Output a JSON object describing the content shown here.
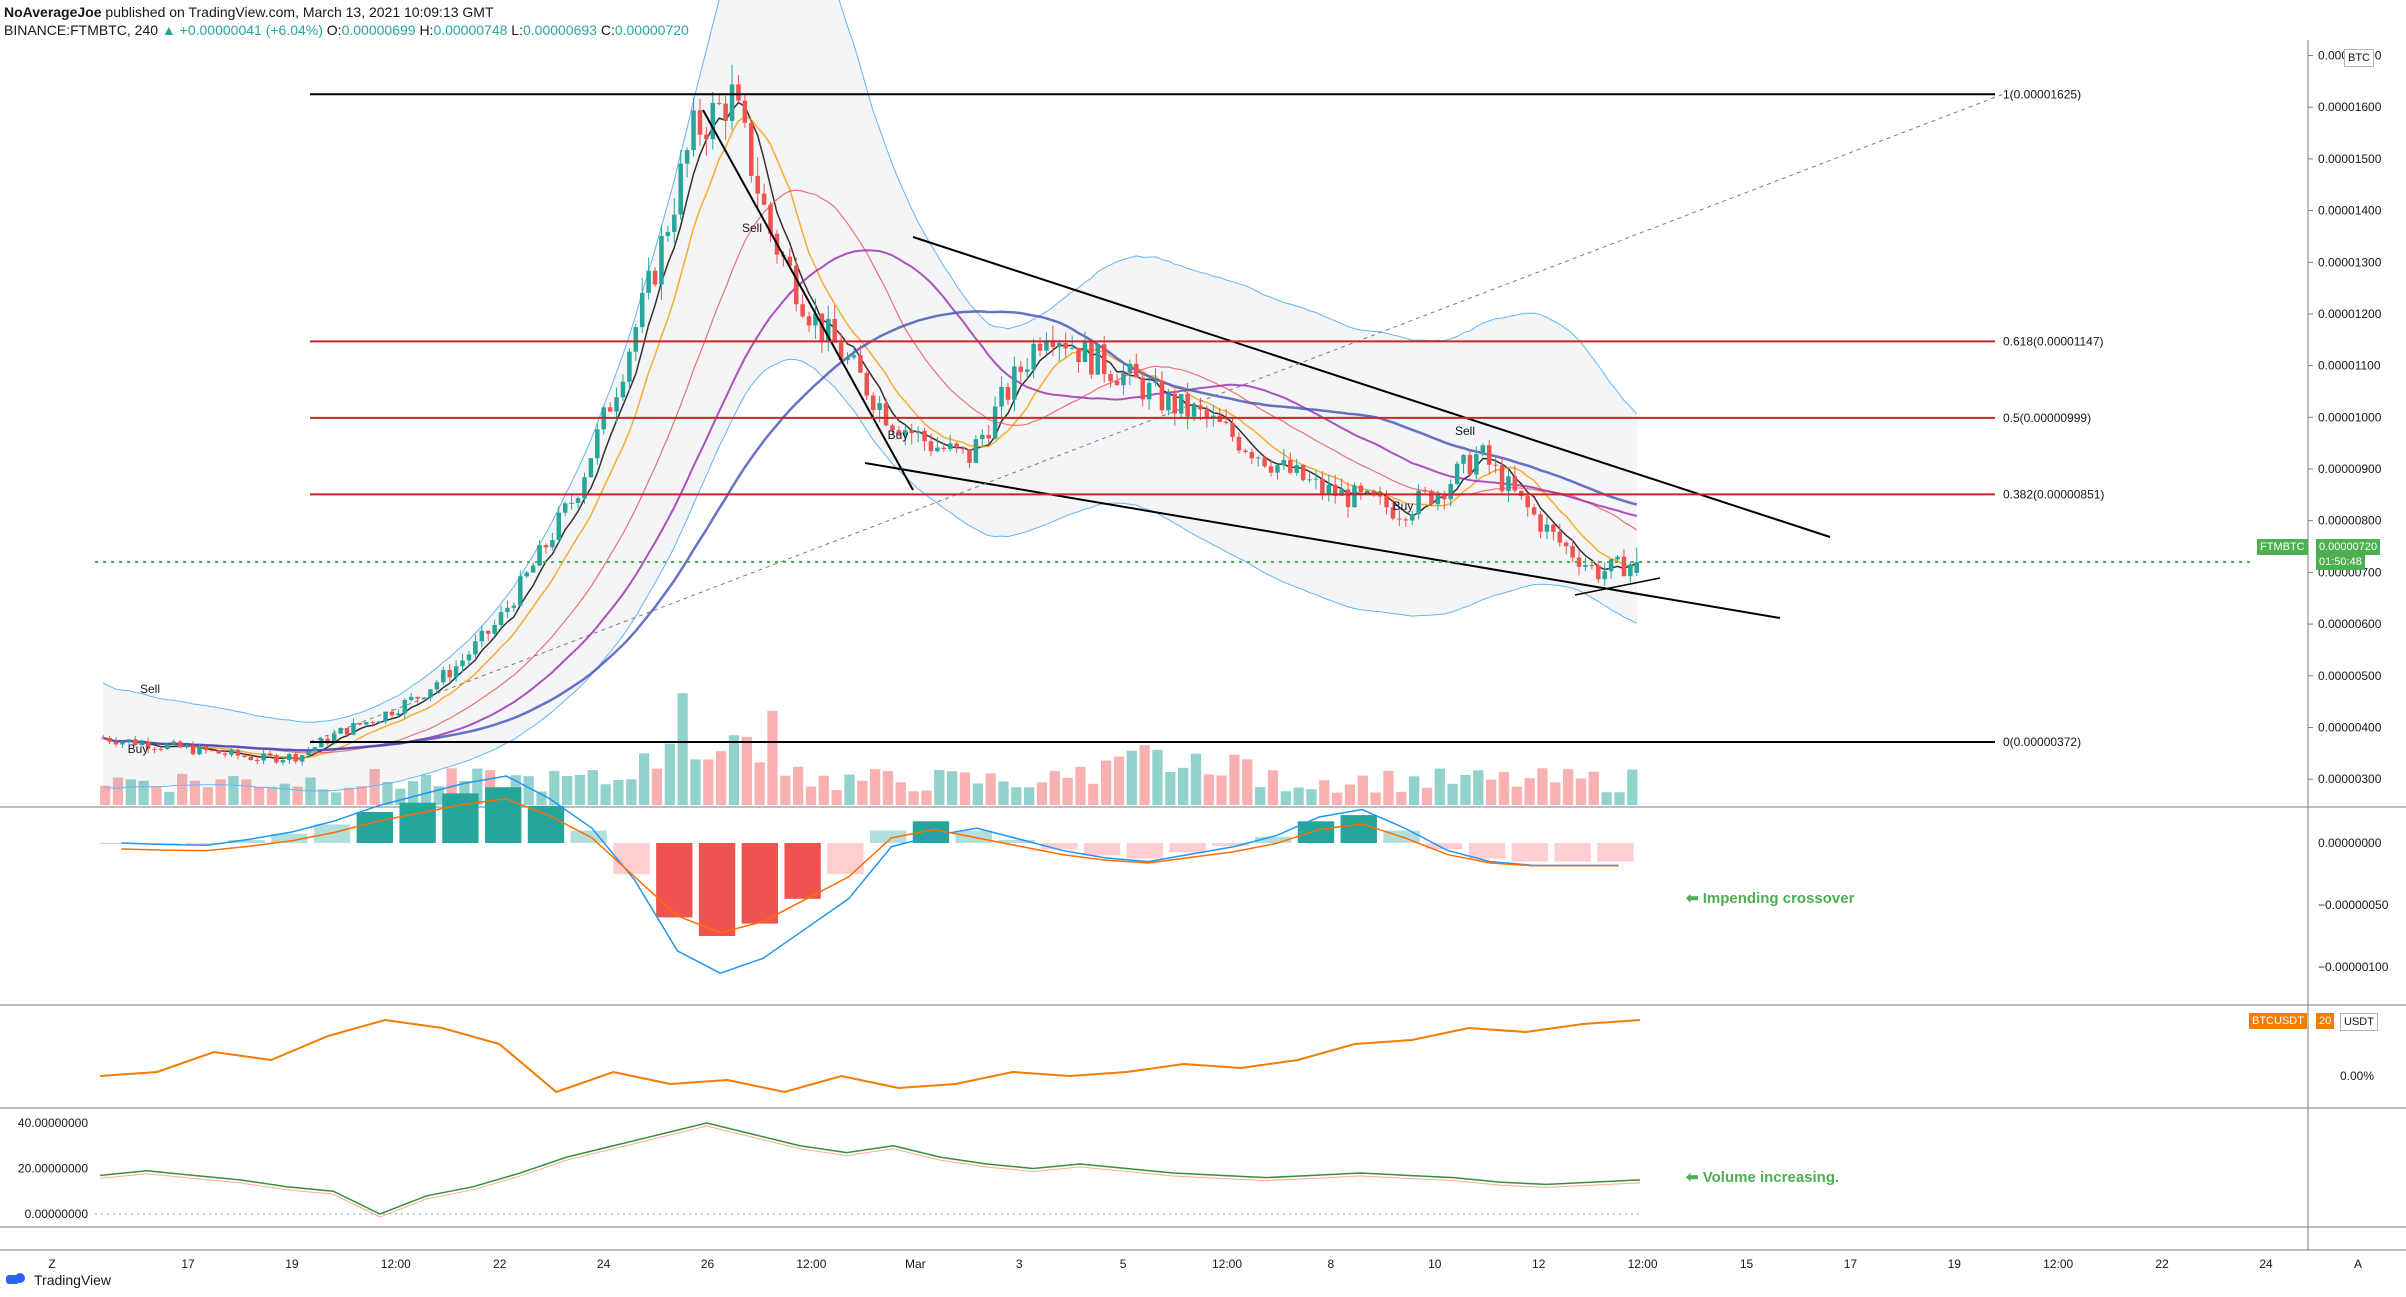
{
  "header": {
    "line1_user": "NoAverageJoe",
    "line1_rest": "published on TradingView.com, March 13, 2021 10:09:13 GMT",
    "symbol": "BINANCE:FTMBTC, 240",
    "change": "▲ +0.00000041 (+6.04%)",
    "open": "0.00000699",
    "high": "0.00000748",
    "low": "0.00000693",
    "close": "0.00000720",
    "o_label": "O:",
    "h_label": "H:",
    "l_label": "L:",
    "c_label": "C:"
  },
  "footer": {
    "brand": "TradingView"
  },
  "colors": {
    "up": "#26a69a",
    "down": "#ef5350",
    "fib": "#c62828",
    "price_line": "#4caf50",
    "annotation": "#4caf50",
    "btc_line": "#f57c00"
  },
  "fib_labels": {
    "level_1": "1(0.00001625)",
    "level_618": "0.618(0.00001147)",
    "level_5": "0.5(0.00000999)",
    "level_382": "0.382(0.00000851)",
    "level_0": "0(0.00000372)"
  },
  "annotations": {
    "crossover": "Impending crossover",
    "volume": "Volume increasing."
  },
  "signals": {
    "buy": "Buy",
    "sell": "Sell"
  },
  "price_badge": {
    "symbol": "FTMBTC",
    "price": "0.00000720",
    "countdown": "01:50:48"
  },
  "btc_badge": {
    "symbol": "BTCUSDT",
    "value": "20",
    "unit": "USDT"
  },
  "currency_badge": "BTC",
  "scale_buttons": {
    "left": "Z",
    "right": "A"
  },
  "price_axis": [
    "0.00001700",
    "0.00001600",
    "0.00001500",
    "0.00001400",
    "0.00001300",
    "0.00001200",
    "0.00001100",
    "0.00001000",
    "0.00000900",
    "0.00000800",
    "0.00000700",
    "0.00000600",
    "0.00000500",
    "0.00000400",
    "0.00000300"
  ],
  "macd_axis": [
    "0.00000000",
    "−0.00000050",
    "−0.00000100"
  ],
  "btc_axis": [
    "0.00%"
  ],
  "vol_axis": [
    "40.00000000",
    "20.00000000",
    "0.00000000"
  ],
  "time_axis": [
    "17",
    "19",
    "12:00",
    "22",
    "24",
    "26",
    "12:00",
    "Mar",
    "3",
    "5",
    "12:00",
    "8",
    "10",
    "12",
    "12:00",
    "15",
    "17",
    "19",
    "12:00",
    "22",
    "24"
  ],
  "chart_data": {
    "type": "candlestick",
    "symbol": "BINANCE:FTMBTC",
    "interval": "240",
    "title": "BINANCE:FTMBTC, 240",
    "last": {
      "open": 6.99e-06,
      "high": 7.48e-06,
      "low": 6.93e-06,
      "close": 7.2e-06,
      "change": 4.1e-07,
      "change_pct": 6.04
    },
    "ylim": [
      2.5e-06,
      1.73e-05
    ],
    "close_path": [
      3.8,
      3.7,
      3.6,
      3.5,
      3.4,
      3.45,
      3.9,
      4.2,
      4.6,
      5.2,
      6.0,
      7.2,
      8.5,
      10.5,
      12.8,
      15.5,
      16.2,
      13.5,
      12.0,
      11.0,
      10.0,
      9.5,
      9.2,
      10.5,
      11.8,
      11.2,
      10.8,
      10.3,
      10.0,
      9.5,
      9.0,
      8.6,
      8.4,
      8.2,
      8.6,
      9.3,
      8.4,
      7.6,
      7.0,
      7.2
    ],
    "fib_levels": [
      {
        "ratio": 1,
        "price": 1.625e-05
      },
      {
        "ratio": 0.618,
        "price": 1.147e-05
      },
      {
        "ratio": 0.5,
        "price": 9.99e-06
      },
      {
        "ratio": 0.382,
        "price": 8.51e-06
      },
      {
        "ratio": 0,
        "price": 3.72e-06
      }
    ],
    "macd_hist": [
      0.0,
      -0.02,
      -0.03,
      0.05,
      0.15,
      0.3,
      0.5,
      0.65,
      0.8,
      0.9,
      0.6,
      0.2,
      -0.5,
      -1.2,
      -1.5,
      -1.3,
      -0.9,
      -0.5,
      0.2,
      0.35,
      0.2,
      0.05,
      -0.1,
      -0.2,
      -0.25,
      -0.15,
      -0.05,
      0.1,
      0.35,
      0.45,
      0.2,
      -0.1,
      -0.25,
      -0.3,
      -0.3,
      -0.3
    ],
    "btc_usdt_relative_path": [
      0.3,
      0.35,
      0.6,
      0.5,
      0.8,
      1.0,
      0.9,
      0.7,
      0.1,
      0.35,
      0.2,
      0.25,
      0.1,
      0.3,
      0.15,
      0.2,
      0.35,
      0.3,
      0.35,
      0.45,
      0.4,
      0.5,
      0.7,
      0.75,
      0.9,
      0.85,
      0.95,
      1.0
    ],
    "volume_oscillator": [
      17,
      19,
      17,
      15,
      12,
      10,
      0,
      8,
      12,
      18,
      25,
      30,
      35,
      40,
      35,
      30,
      27,
      30,
      25,
      22,
      20,
      22,
      20,
      18,
      17,
      16,
      17,
      18,
      17,
      16,
      14,
      13,
      14,
      15
    ],
    "volume_oscillator_ylim": [
      0,
      40
    ],
    "volume_oscillator_ticks": [
      0,
      20,
      40
    ]
  }
}
